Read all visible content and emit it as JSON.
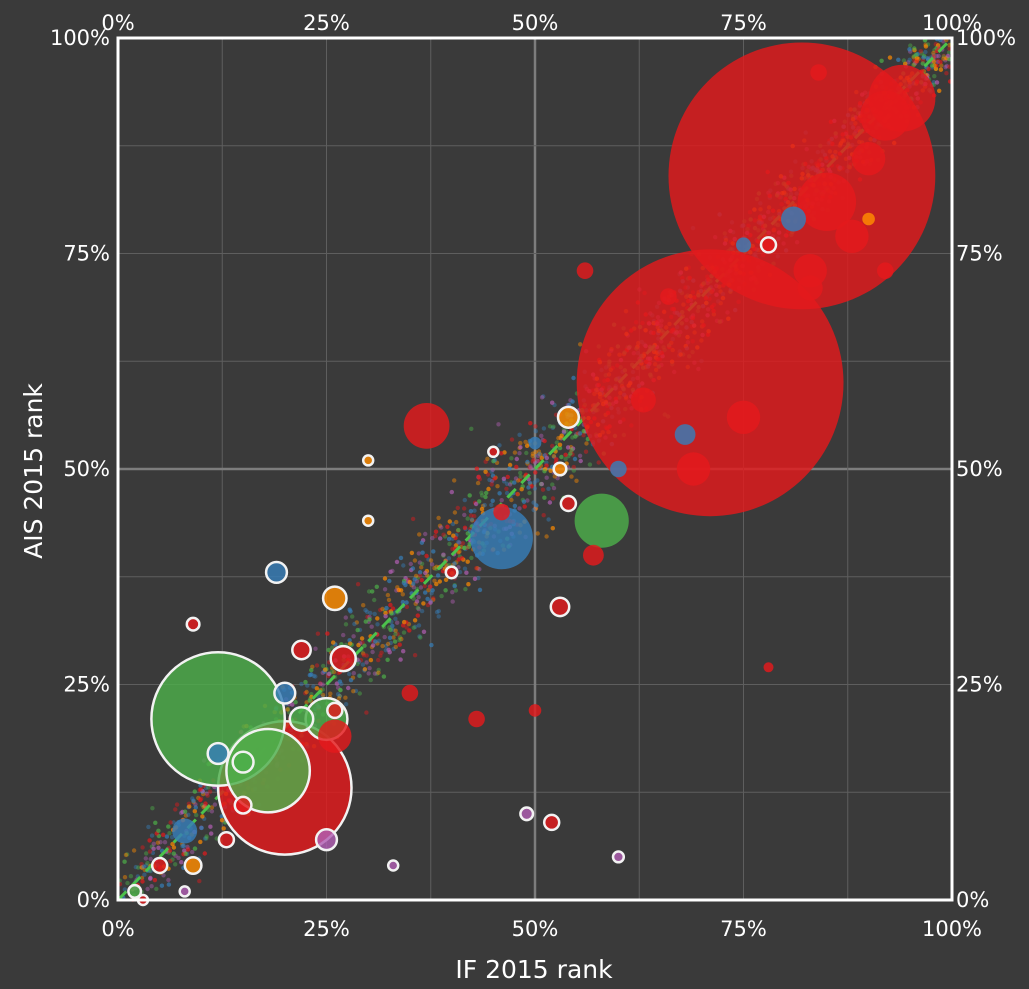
{
  "colors": {
    "background": "#3a3a3a",
    "grid_minor": "#5e5e5e",
    "grid_major": "#7d7d7d",
    "frame": "#ffffff",
    "diagonal": "#4cc24c",
    "outline": "#f2f2f2",
    "red": "#e41a1c",
    "green": "#4daf4a",
    "blue": "#377eb8",
    "orange": "#ff8c00",
    "purple": "#b15fb3"
  },
  "chart_data": {
    "type": "scatter",
    "title": "",
    "xlabel": "IF 2015 rank",
    "ylabel": "AIS 2015 rank",
    "xlim": [
      0,
      1
    ],
    "ylim": [
      0,
      1
    ],
    "grid": true,
    "legend": "none",
    "x_ticks": [
      {
        "value": 0,
        "label": "0%"
      },
      {
        "value": 0.25,
        "label": "25%"
      },
      {
        "value": 0.5,
        "label": "50%"
      },
      {
        "value": 0.75,
        "label": "75%"
      },
      {
        "value": 1,
        "label": "100%"
      }
    ],
    "y_ticks": [
      {
        "value": 0,
        "label": "0%"
      },
      {
        "value": 0.25,
        "label": "25%"
      },
      {
        "value": 0.5,
        "label": "50%"
      },
      {
        "value": 0.75,
        "label": "75%"
      },
      {
        "value": 1,
        "label": "100%"
      }
    ],
    "reference_line": {
      "from": [
        0,
        0
      ],
      "to": [
        1,
        1
      ],
      "style": "dashed"
    },
    "background_cloud": {
      "count": 3200,
      "colors": [
        "red",
        "green",
        "blue",
        "purple",
        "orange"
      ]
    },
    "points": [
      {
        "x": 0.82,
        "y": 0.84,
        "size": 0.32,
        "color": "red"
      },
      {
        "x": 0.71,
        "y": 0.6,
        "size": 0.32,
        "color": "red"
      },
      {
        "x": 0.94,
        "y": 0.93,
        "size": 0.08,
        "color": "red"
      },
      {
        "x": 0.92,
        "y": 0.91,
        "size": 0.06,
        "color": "red"
      },
      {
        "x": 0.85,
        "y": 0.81,
        "size": 0.07,
        "color": "red"
      },
      {
        "x": 0.88,
        "y": 0.77,
        "size": 0.04,
        "color": "red"
      },
      {
        "x": 0.83,
        "y": 0.73,
        "size": 0.04,
        "color": "red"
      },
      {
        "x": 0.83,
        "y": 0.71,
        "size": 0.03,
        "color": "red"
      },
      {
        "x": 0.9,
        "y": 0.86,
        "size": 0.04,
        "color": "red"
      },
      {
        "x": 0.92,
        "y": 0.73,
        "size": 0.02,
        "color": "red"
      },
      {
        "x": 0.84,
        "y": 0.96,
        "size": 0.02,
        "color": "red"
      },
      {
        "x": 0.56,
        "y": 0.73,
        "size": 0.02,
        "color": "red"
      },
      {
        "x": 0.66,
        "y": 0.7,
        "size": 0.02,
        "color": "red"
      },
      {
        "x": 0.69,
        "y": 0.5,
        "size": 0.04,
        "color": "red"
      },
      {
        "x": 0.75,
        "y": 0.56,
        "size": 0.04,
        "color": "red"
      },
      {
        "x": 0.37,
        "y": 0.55,
        "size": 0.055,
        "color": "red"
      },
      {
        "x": 0.63,
        "y": 0.58,
        "size": 0.03,
        "color": "red"
      },
      {
        "x": 0.2,
        "y": 0.13,
        "size": 0.16,
        "color": "red",
        "outlined": true
      },
      {
        "x": 0.26,
        "y": 0.19,
        "size": 0.04,
        "color": "red"
      },
      {
        "x": 0.27,
        "y": 0.28,
        "size": 0.03,
        "color": "red",
        "outlined": true
      },
      {
        "x": 0.22,
        "y": 0.29,
        "size": 0.022,
        "color": "red",
        "outlined": true
      },
      {
        "x": 0.15,
        "y": 0.11,
        "size": 0.02,
        "color": "red",
        "outlined": true
      },
      {
        "x": 0.35,
        "y": 0.24,
        "size": 0.02,
        "color": "red"
      },
      {
        "x": 0.43,
        "y": 0.21,
        "size": 0.02,
        "color": "red"
      },
      {
        "x": 0.5,
        "y": 0.22,
        "size": 0.015,
        "color": "red"
      },
      {
        "x": 0.53,
        "y": 0.34,
        "size": 0.022,
        "color": "red",
        "outlined": true
      },
      {
        "x": 0.57,
        "y": 0.4,
        "size": 0.025,
        "color": "red"
      },
      {
        "x": 0.54,
        "y": 0.46,
        "size": 0.018,
        "color": "red",
        "outlined": true
      },
      {
        "x": 0.46,
        "y": 0.45,
        "size": 0.02,
        "color": "red"
      },
      {
        "x": 0.52,
        "y": 0.09,
        "size": 0.018,
        "color": "red",
        "outlined": true
      },
      {
        "x": 0.78,
        "y": 0.27,
        "size": 0.012,
        "color": "red"
      },
      {
        "x": 0.09,
        "y": 0.32,
        "size": 0.015,
        "color": "red",
        "outlined": true
      },
      {
        "x": 0.13,
        "y": 0.07,
        "size": 0.018,
        "color": "red",
        "outlined": true
      },
      {
        "x": 0.12,
        "y": 0.21,
        "size": 0.16,
        "color": "green",
        "outlined": true
      },
      {
        "x": 0.58,
        "y": 0.44,
        "size": 0.065,
        "color": "green"
      },
      {
        "x": 0.25,
        "y": 0.21,
        "size": 0.05,
        "color": "green",
        "outlined": true
      },
      {
        "x": 0.18,
        "y": 0.15,
        "size": 0.1,
        "color": "green",
        "outlined": true
      },
      {
        "x": 0.22,
        "y": 0.21,
        "size": 0.028,
        "color": "green",
        "outlined": true
      },
      {
        "x": 0.15,
        "y": 0.16,
        "size": 0.025,
        "color": "green",
        "outlined": true
      },
      {
        "x": 0.46,
        "y": 0.42,
        "size": 0.075,
        "color": "blue"
      },
      {
        "x": 0.19,
        "y": 0.38,
        "size": 0.025,
        "color": "blue",
        "outlined": true
      },
      {
        "x": 0.2,
        "y": 0.24,
        "size": 0.025,
        "color": "blue",
        "outlined": true
      },
      {
        "x": 0.12,
        "y": 0.17,
        "size": 0.025,
        "color": "blue",
        "outlined": true
      },
      {
        "x": 0.08,
        "y": 0.08,
        "size": 0.03,
        "color": "blue"
      },
      {
        "x": 0.81,
        "y": 0.79,
        "size": 0.03,
        "color": "blue"
      },
      {
        "x": 0.68,
        "y": 0.54,
        "size": 0.025,
        "color": "blue"
      },
      {
        "x": 0.6,
        "y": 0.5,
        "size": 0.02,
        "color": "blue"
      },
      {
        "x": 0.75,
        "y": 0.76,
        "size": 0.018,
        "color": "blue"
      },
      {
        "x": 0.5,
        "y": 0.53,
        "size": 0.015,
        "color": "blue"
      },
      {
        "x": 0.26,
        "y": 0.35,
        "size": 0.028,
        "color": "orange",
        "outlined": true
      },
      {
        "x": 0.54,
        "y": 0.56,
        "size": 0.025,
        "color": "orange",
        "outlined": true
      },
      {
        "x": 0.9,
        "y": 0.79,
        "size": 0.015,
        "color": "orange"
      },
      {
        "x": 0.53,
        "y": 0.5,
        "size": 0.015,
        "color": "orange",
        "outlined": true
      },
      {
        "x": 0.3,
        "y": 0.51,
        "size": 0.012,
        "color": "orange",
        "outlined": true
      },
      {
        "x": 0.3,
        "y": 0.44,
        "size": 0.012,
        "color": "orange",
        "outlined": true
      },
      {
        "x": 0.25,
        "y": 0.07,
        "size": 0.025,
        "color": "purple",
        "outlined": true
      },
      {
        "x": 0.49,
        "y": 0.1,
        "size": 0.015,
        "color": "purple",
        "outlined": true
      },
      {
        "x": 0.6,
        "y": 0.05,
        "size": 0.013,
        "color": "purple",
        "outlined": true
      },
      {
        "x": 0.33,
        "y": 0.04,
        "size": 0.012,
        "color": "purple",
        "outlined": true
      },
      {
        "x": 0.08,
        "y": 0.01,
        "size": 0.012,
        "color": "purple",
        "outlined": true
      },
      {
        "x": 0.09,
        "y": 0.04,
        "size": 0.02,
        "color": "orange",
        "outlined": true
      },
      {
        "x": 0.05,
        "y": 0.04,
        "size": 0.018,
        "color": "red",
        "outlined": true
      },
      {
        "x": 0.02,
        "y": 0.01,
        "size": 0.015,
        "color": "green",
        "outlined": true
      },
      {
        "x": 0.03,
        "y": 0.0,
        "size": 0.012,
        "color": "red",
        "outlined": true
      },
      {
        "x": 0.26,
        "y": 0.22,
        "size": 0.018,
        "color": "red",
        "outlined": true
      },
      {
        "x": 0.78,
        "y": 0.76,
        "size": 0.018,
        "color": "red",
        "outlined": true
      },
      {
        "x": 0.45,
        "y": 0.52,
        "size": 0.012,
        "color": "red",
        "outlined": true
      },
      {
        "x": 0.4,
        "y": 0.38,
        "size": 0.014,
        "color": "red",
        "outlined": true
      }
    ]
  }
}
